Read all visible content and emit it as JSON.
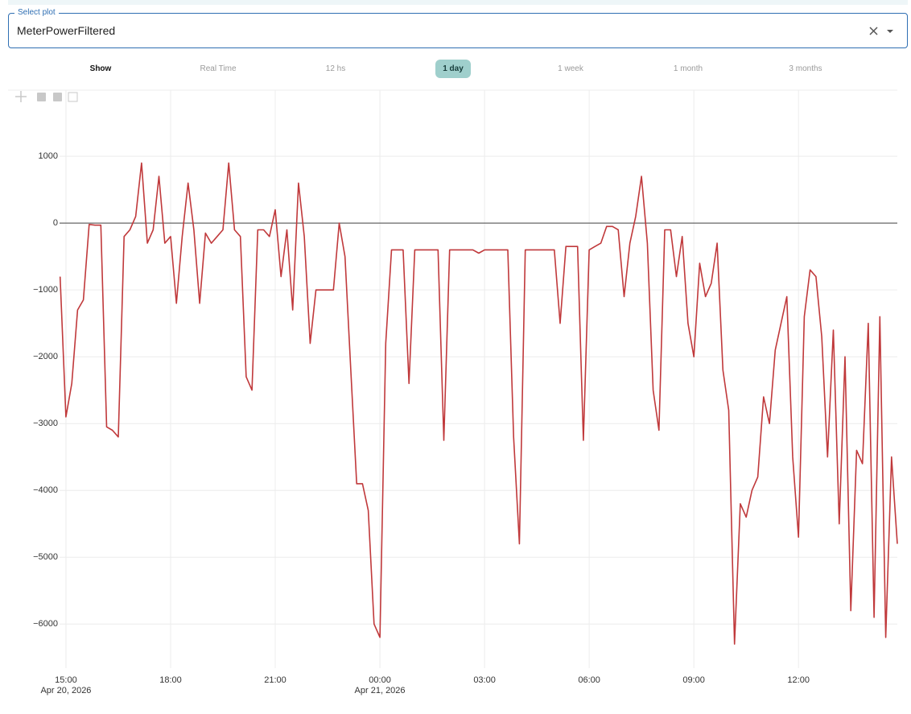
{
  "select": {
    "label": "Select plot",
    "value": "MeterPowerFiltered"
  },
  "range_label": "Show",
  "buttons": [
    "Real Time",
    "12 hs",
    "1 day",
    "1 week",
    "1 month",
    "3 months"
  ],
  "active_button": 2,
  "chart_data": {
    "type": "line",
    "x": [
      "2026-04-20T14:50",
      "2026-04-20T15:00",
      "2026-04-20T15:10",
      "2026-04-20T15:20",
      "2026-04-20T15:30",
      "2026-04-20T15:40",
      "2026-04-20T15:50",
      "2026-04-20T16:00",
      "2026-04-20T16:10",
      "2026-04-20T16:20",
      "2026-04-20T16:30",
      "2026-04-20T16:40",
      "2026-04-20T16:50",
      "2026-04-20T17:00",
      "2026-04-20T17:10",
      "2026-04-20T17:20",
      "2026-04-20T17:30",
      "2026-04-20T17:40",
      "2026-04-20T17:50",
      "2026-04-20T18:00",
      "2026-04-20T18:10",
      "2026-04-20T18:20",
      "2026-04-20T18:30",
      "2026-04-20T18:40",
      "2026-04-20T18:50",
      "2026-04-20T19:00",
      "2026-04-20T19:10",
      "2026-04-20T19:20",
      "2026-04-20T19:30",
      "2026-04-20T19:40",
      "2026-04-20T19:50",
      "2026-04-20T20:00",
      "2026-04-20T20:10",
      "2026-04-20T20:20",
      "2026-04-20T20:30",
      "2026-04-20T20:40",
      "2026-04-20T20:50",
      "2026-04-20T21:00",
      "2026-04-20T21:10",
      "2026-04-20T21:20",
      "2026-04-20T21:30",
      "2026-04-20T21:40",
      "2026-04-20T21:50",
      "2026-04-20T22:00",
      "2026-04-20T22:10",
      "2026-04-20T22:20",
      "2026-04-20T22:30",
      "2026-04-20T22:40",
      "2026-04-20T22:50",
      "2026-04-20T23:00",
      "2026-04-20T23:10",
      "2026-04-20T23:20",
      "2026-04-20T23:30",
      "2026-04-20T23:40",
      "2026-04-20T23:50",
      "2026-04-21T00:00",
      "2026-04-21T00:10",
      "2026-04-21T00:20",
      "2026-04-21T00:30",
      "2026-04-21T00:40",
      "2026-04-21T00:50",
      "2026-04-21T01:00",
      "2026-04-21T01:10",
      "2026-04-21T01:20",
      "2026-04-21T01:30",
      "2026-04-21T01:40",
      "2026-04-21T01:50",
      "2026-04-21T02:00",
      "2026-04-21T02:10",
      "2026-04-21T02:20",
      "2026-04-21T02:30",
      "2026-04-21T02:40",
      "2026-04-21T02:50",
      "2026-04-21T03:00",
      "2026-04-21T03:10",
      "2026-04-21T03:20",
      "2026-04-21T03:30",
      "2026-04-21T03:40",
      "2026-04-21T03:50",
      "2026-04-21T04:00",
      "2026-04-21T04:10",
      "2026-04-21T04:20",
      "2026-04-21T04:30",
      "2026-04-21T04:40",
      "2026-04-21T04:50",
      "2026-04-21T05:00",
      "2026-04-21T05:10",
      "2026-04-21T05:20",
      "2026-04-21T05:30",
      "2026-04-21T05:40",
      "2026-04-21T05:50",
      "2026-04-21T06:00",
      "2026-04-21T06:10",
      "2026-04-21T06:20",
      "2026-04-21T06:30",
      "2026-04-21T06:40",
      "2026-04-21T06:50",
      "2026-04-21T07:00",
      "2026-04-21T07:10",
      "2026-04-21T07:20",
      "2026-04-21T07:30",
      "2026-04-21T07:40",
      "2026-04-21T07:50",
      "2026-04-21T08:00",
      "2026-04-21T08:10",
      "2026-04-21T08:20",
      "2026-04-21T08:30",
      "2026-04-21T08:40",
      "2026-04-21T08:50",
      "2026-04-21T09:00",
      "2026-04-21T09:10",
      "2026-04-21T09:20",
      "2026-04-21T09:30",
      "2026-04-21T09:40",
      "2026-04-21T09:50",
      "2026-04-21T10:00",
      "2026-04-21T10:10",
      "2026-04-21T10:20",
      "2026-04-21T10:30",
      "2026-04-21T10:40",
      "2026-04-21T10:50",
      "2026-04-21T11:00",
      "2026-04-21T11:10",
      "2026-04-21T11:20",
      "2026-04-21T11:30",
      "2026-04-21T11:40",
      "2026-04-21T11:50",
      "2026-04-21T12:00",
      "2026-04-21T12:10",
      "2026-04-21T12:20",
      "2026-04-21T12:30",
      "2026-04-21T12:40",
      "2026-04-21T12:50",
      "2026-04-21T13:00",
      "2026-04-21T13:10",
      "2026-04-21T13:20",
      "2026-04-21T13:30",
      "2026-04-21T13:40",
      "2026-04-21T13:50",
      "2026-04-21T14:00",
      "2026-04-21T14:10",
      "2026-04-21T14:20",
      "2026-04-21T14:30",
      "2026-04-21T14:40",
      "2026-04-21T14:50"
    ],
    "series": [
      {
        "color": "#c0393b",
        "values": [
          -800,
          -2900,
          -2400,
          -1300,
          -1150,
          -20,
          -30,
          -30,
          -3050,
          -3100,
          -3200,
          -200,
          -100,
          100,
          900,
          -300,
          -100,
          700,
          -300,
          -200,
          -1200,
          -200,
          600,
          -100,
          -1200,
          -150,
          -300,
          -200,
          -100,
          900,
          -100,
          -200,
          -2300,
          -2500,
          -100,
          -100,
          -200,
          200,
          -800,
          -100,
          -1300,
          600,
          -200,
          -1800,
          -1000,
          -1000,
          -1000,
          -1000,
          0,
          -500,
          -2200,
          -3900,
          -3900,
          -4300,
          -6000,
          -6200,
          -1800,
          -400,
          -400,
          -400,
          -2400,
          -400,
          -400,
          -400,
          -400,
          -400,
          -3250,
          -400,
          -400,
          -400,
          -400,
          -400,
          -450,
          -400,
          -400,
          -400,
          -400,
          -400,
          -3200,
          -4800,
          -400,
          -400,
          -400,
          -400,
          -400,
          -400,
          -1500,
          -350,
          -350,
          -350,
          -3250,
          -400,
          -350,
          -300,
          -50,
          -50,
          -100,
          -1100,
          -300,
          100,
          700,
          -300,
          -2500,
          -3100,
          -100,
          -100,
          -800,
          -200,
          -1500,
          -2000,
          -600,
          -1100,
          -900,
          -300,
          -2200,
          -2800,
          -6300,
          -4200,
          -4400,
          -4000,
          -3800,
          -2600,
          -3000,
          -1900,
          -1500,
          -1100,
          -3500,
          -4700,
          -1400,
          -700,
          -800,
          -1700,
          -3500,
          -1600,
          -4500,
          -2000,
          -5800,
          -3400,
          -3600,
          -1500,
          -5900,
          -1400,
          -6200,
          -3500,
          -4800
        ]
      }
    ],
    "xlim": [
      "2026-04-20T14:49",
      "2026-04-21T14:50"
    ],
    "xticks": [
      {
        "value": "2026-04-20T15:00",
        "label": "15:00",
        "sublabel": "Apr 20, 2026"
      },
      {
        "value": "2026-04-20T18:00",
        "label": "18:00"
      },
      {
        "value": "2026-04-20T21:00",
        "label": "21:00"
      },
      {
        "value": "2026-04-21T00:00",
        "label": "00:00",
        "sublabel": "Apr 21, 2026"
      },
      {
        "value": "2026-04-21T03:00",
        "label": "03:00"
      },
      {
        "value": "2026-04-21T06:00",
        "label": "06:00"
      },
      {
        "value": "2026-04-21T09:00",
        "label": "09:00"
      },
      {
        "value": "2026-04-21T12:00",
        "label": "12:00"
      }
    ],
    "ylim": [
      -6660,
      1990
    ],
    "yticks": [
      {
        "value": -6000,
        "label": "−6000"
      },
      {
        "value": -5000,
        "label": "−5000"
      },
      {
        "value": -4000,
        "label": "−4000"
      },
      {
        "value": -3000,
        "label": "−3000"
      },
      {
        "value": -2000,
        "label": "−2000"
      },
      {
        "value": -1000,
        "label": "−1000"
      },
      0,
      1000
    ],
    "grid": true,
    "zeroline": true
  }
}
